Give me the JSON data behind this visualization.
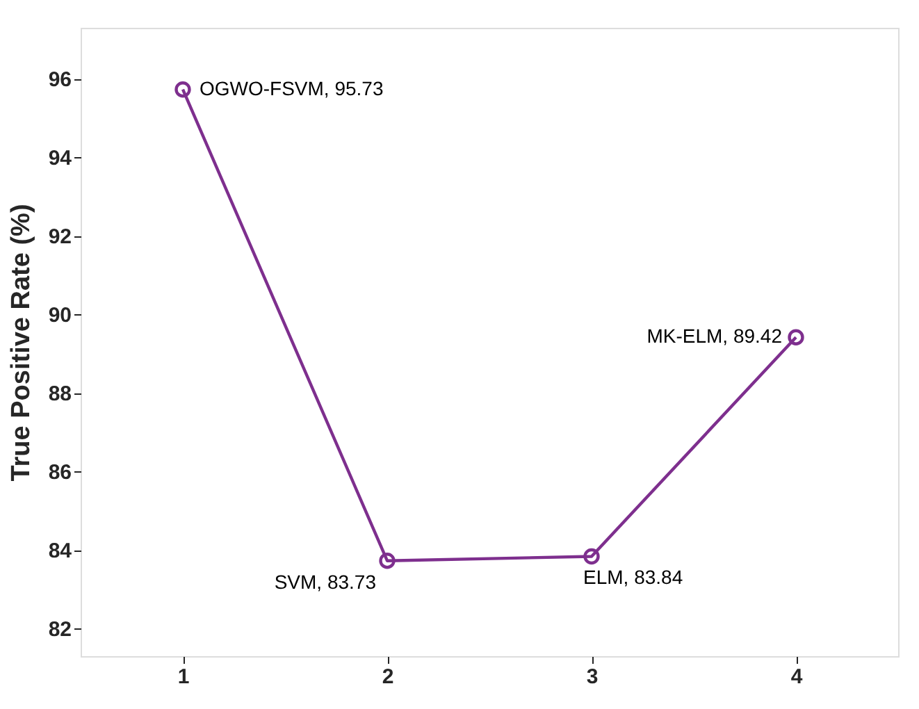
{
  "chart_data": {
    "type": "line",
    "ylabel": "True Positive Rate (%)",
    "x": [
      1,
      2,
      3,
      4
    ],
    "series": [
      {
        "color": "#7e2f8e",
        "values": [
          95.73,
          83.73,
          83.84,
          89.42
        ]
      }
    ],
    "xlim": [
      0.5,
      4.5
    ],
    "xticks": [
      1,
      2,
      3,
      4
    ],
    "ylim": [
      81.3,
      97.3
    ],
    "yticks": [
      82,
      84,
      86,
      88,
      90,
      92,
      94,
      96
    ],
    "grid": false,
    "marker": "circle",
    "line_style": "solid",
    "annotations": [
      {
        "text": "OGWO-FSVM, 95.73",
        "x": 1,
        "y": 95.73
      },
      {
        "text": "SVM, 83.73",
        "x": 2,
        "y": 83.73
      },
      {
        "text": "ELM, 83.84",
        "x": 3,
        "y": 83.84
      },
      {
        "text": "MK-ELM, 89.42",
        "x": 4,
        "y": 89.42
      }
    ]
  }
}
